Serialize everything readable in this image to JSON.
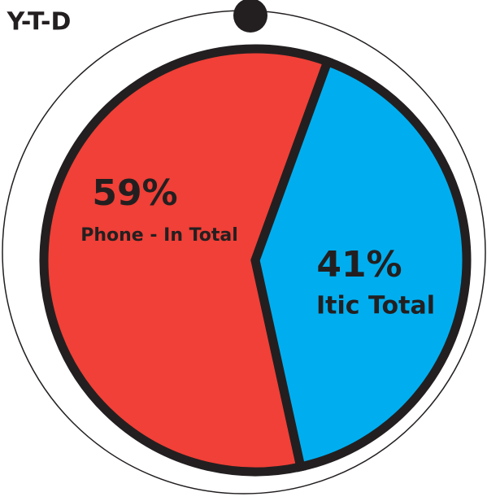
{
  "chart_data": {
    "type": "pie",
    "title": "Y-T-D",
    "categories": [
      "Phone - In Total",
      "Itic Total"
    ],
    "values": [
      59,
      41
    ],
    "value_labels": [
      "59%",
      "41%"
    ],
    "colors": [
      "#f04037",
      "#00aeef"
    ]
  }
}
